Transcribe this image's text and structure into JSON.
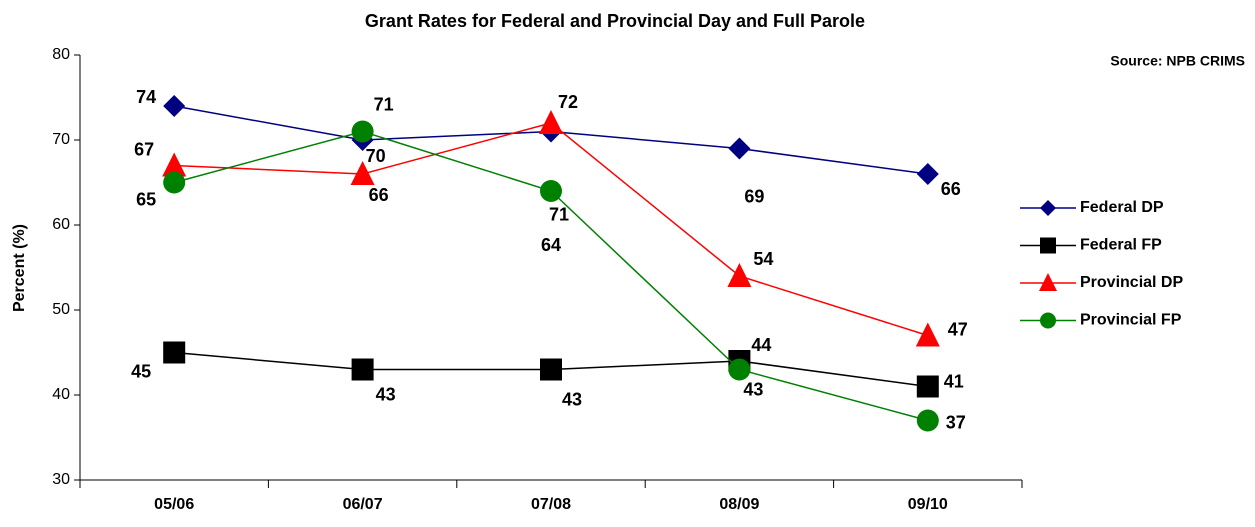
{
  "chart_data": {
    "type": "line",
    "title": "Grant Rates for Federal and Provincial Day and Full Parole",
    "source": "Source: NPB CRIMS",
    "y_label": "Percent (%)",
    "categories": [
      "05/06",
      "06/07",
      "07/08",
      "08/09",
      "09/10"
    ],
    "series": [
      {
        "name": "Federal DP",
        "color": "#000080",
        "marker": "diamond",
        "values": [
          74,
          70,
          71,
          69,
          66
        ]
      },
      {
        "name": "Federal FP",
        "color": "#000000",
        "marker": "square",
        "values": [
          45,
          43,
          43,
          44,
          41
        ]
      },
      {
        "name": "Provincial DP",
        "color": "#ff0000",
        "marker": "triangle",
        "values": [
          67,
          66,
          72,
          54,
          47
        ]
      },
      {
        "name": "Provincial FP",
        "color": "#008000",
        "marker": "circle",
        "values": [
          65,
          71,
          64,
          43,
          37
        ]
      }
    ],
    "ylim": [
      30,
      80
    ],
    "yticks": [
      30,
      40,
      50,
      60,
      70,
      80
    ],
    "legend": "right"
  }
}
